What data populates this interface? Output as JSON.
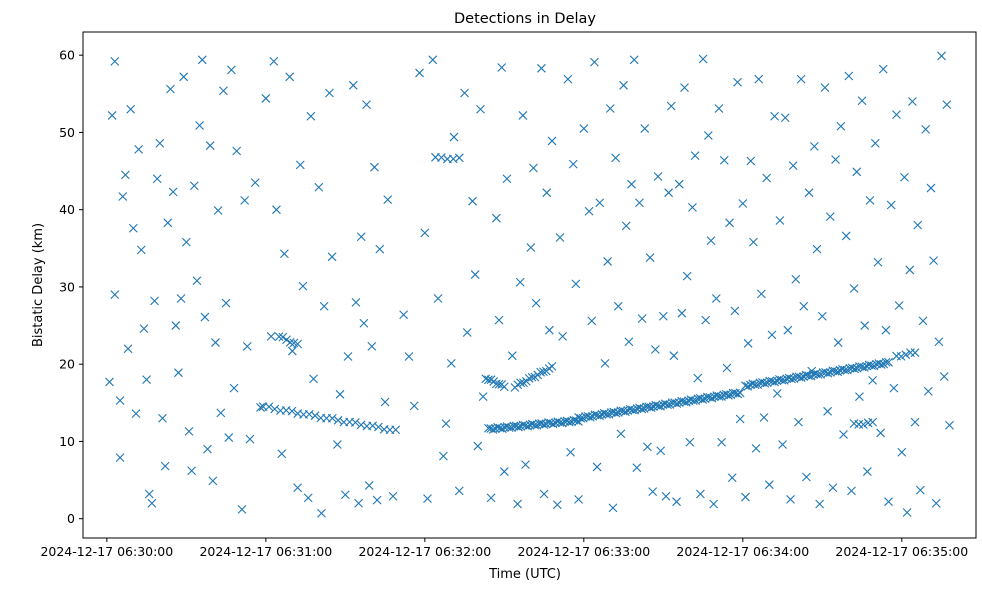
{
  "chart_data": {
    "type": "scatter",
    "title": "Detections in Delay",
    "xlabel": "Time (UTC)",
    "ylabel": "Bistatic Delay (km)",
    "marker": "x",
    "color": "#1f77b4",
    "grid": false,
    "xlim": [
      "2024-12-17 06:29:51",
      "2024-12-17 06:35:28"
    ],
    "ylim": [
      -2.5,
      63
    ],
    "x_ticks": [
      "2024-12-17 06:30:00",
      "2024-12-17 06:31:00",
      "2024-12-17 06:32:00",
      "2024-12-17 06:33:00",
      "2024-12-17 06:34:00",
      "2024-12-17 06:35:00"
    ],
    "y_ticks": [
      0,
      10,
      20,
      30,
      40,
      50,
      60
    ],
    "tracks": [
      {
        "start": "2024-12-17 06:30:59",
        "end": "2024-12-17 06:31:49",
        "y_start": 14.5,
        "y_end": 11.4
      },
      {
        "start": "2024-12-17 06:32:24",
        "end": "2024-12-17 06:32:58",
        "y_start": 11.6,
        "y_end": 12.7
      },
      {
        "start": "2024-12-17 06:32:58",
        "end": "2024-12-17 06:33:59",
        "y_start": 13.0,
        "y_end": 16.3
      },
      {
        "start": "2024-12-17 06:34:01",
        "end": "2024-12-17 06:34:55",
        "y_start": 17.2,
        "y_end": 20.2
      },
      {
        "start": "2024-12-17 06:32:23",
        "end": "2024-12-17 06:32:30",
        "y_start": 18.2,
        "y_end": 17.1
      },
      {
        "start": "2024-12-17 06:32:34",
        "end": "2024-12-17 06:32:48",
        "y_start": 17.1,
        "y_end": 19.6
      },
      {
        "start": "2024-12-17 06:31:05",
        "end": "2024-12-17 06:31:12",
        "y_start": 23.6,
        "y_end": 22.5
      },
      {
        "start": "2024-12-17 06:32:04",
        "end": "2024-12-17 06:32:13",
        "y_start": 46.7,
        "y_end": 46.6
      },
      {
        "start": "2024-12-17 06:34:42",
        "end": "2024-12-17 06:34:49",
        "y_start": 12.2,
        "y_end": 12.4
      },
      {
        "start": "2024-12-17 06:34:58",
        "end": "2024-12-17 06:35:05",
        "y_start": 21.0,
        "y_end": 21.5
      }
    ],
    "track_points": [
      24,
      40,
      70,
      60,
      8,
      14,
      6,
      5,
      5,
      5
    ],
    "scatter_points": [
      [
        "2024-12-17 06:30:01",
        17.7
      ],
      [
        "2024-12-17 06:30:02",
        52.2
      ],
      [
        "2024-12-17 06:30:03",
        59.2
      ],
      [
        "2024-12-17 06:30:03",
        29.0
      ],
      [
        "2024-12-17 06:30:05",
        15.3
      ],
      [
        "2024-12-17 06:30:05",
        7.9
      ],
      [
        "2024-12-17 06:30:06",
        41.7
      ],
      [
        "2024-12-17 06:30:07",
        44.5
      ],
      [
        "2024-12-17 06:30:08",
        22.0
      ],
      [
        "2024-12-17 06:30:09",
        53.0
      ],
      [
        "2024-12-17 06:30:10",
        37.6
      ],
      [
        "2024-12-17 06:30:11",
        13.6
      ],
      [
        "2024-12-17 06:30:12",
        47.8
      ],
      [
        "2024-12-17 06:30:13",
        34.8
      ],
      [
        "2024-12-17 06:30:14",
        24.6
      ],
      [
        "2024-12-17 06:30:15",
        18.0
      ],
      [
        "2024-12-17 06:30:16",
        3.2
      ],
      [
        "2024-12-17 06:30:17",
        2.0
      ],
      [
        "2024-12-17 06:30:18",
        28.2
      ],
      [
        "2024-12-17 06:30:19",
        44.0
      ],
      [
        "2024-12-17 06:30:20",
        48.6
      ],
      [
        "2024-12-17 06:30:21",
        13.0
      ],
      [
        "2024-12-17 06:30:22",
        6.8
      ],
      [
        "2024-12-17 06:30:23",
        38.3
      ],
      [
        "2024-12-17 06:30:24",
        55.6
      ],
      [
        "2024-12-17 06:30:25",
        42.3
      ],
      [
        "2024-12-17 06:30:26",
        25.0
      ],
      [
        "2024-12-17 06:30:27",
        18.9
      ],
      [
        "2024-12-17 06:30:28",
        28.5
      ],
      [
        "2024-12-17 06:30:29",
        57.2
      ],
      [
        "2024-12-17 06:30:30",
        35.8
      ],
      [
        "2024-12-17 06:30:31",
        11.3
      ],
      [
        "2024-12-17 06:30:32",
        6.2
      ],
      [
        "2024-12-17 06:30:33",
        43.1
      ],
      [
        "2024-12-17 06:30:34",
        30.8
      ],
      [
        "2024-12-17 06:30:35",
        50.9
      ],
      [
        "2024-12-17 06:30:36",
        59.4
      ],
      [
        "2024-12-17 06:30:37",
        26.1
      ],
      [
        "2024-12-17 06:30:38",
        9.0
      ],
      [
        "2024-12-17 06:30:39",
        48.3
      ],
      [
        "2024-12-17 06:30:40",
        4.9
      ],
      [
        "2024-12-17 06:30:41",
        22.8
      ],
      [
        "2024-12-17 06:30:42",
        39.9
      ],
      [
        "2024-12-17 06:30:43",
        13.7
      ],
      [
        "2024-12-17 06:30:44",
        55.4
      ],
      [
        "2024-12-17 06:30:45",
        27.9
      ],
      [
        "2024-12-17 06:30:46",
        10.5
      ],
      [
        "2024-12-17 06:30:47",
        58.1
      ],
      [
        "2024-12-17 06:30:48",
        16.9
      ],
      [
        "2024-12-17 06:30:49",
        47.6
      ],
      [
        "2024-12-17 06:30:51",
        1.2
      ],
      [
        "2024-12-17 06:30:52",
        41.2
      ],
      [
        "2024-12-17 06:30:53",
        22.3
      ],
      [
        "2024-12-17 06:30:54",
        10.3
      ],
      [
        "2024-12-17 06:30:56",
        43.5
      ],
      [
        "2024-12-17 06:30:58",
        14.4
      ],
      [
        "2024-12-17 06:31:00",
        54.4
      ],
      [
        "2024-12-17 06:31:02",
        23.6
      ],
      [
        "2024-12-17 06:31:03",
        59.2
      ],
      [
        "2024-12-17 06:31:04",
        40.0
      ],
      [
        "2024-12-17 06:31:06",
        8.4
      ],
      [
        "2024-12-17 06:31:07",
        34.3
      ],
      [
        "2024-12-17 06:31:09",
        57.2
      ],
      [
        "2024-12-17 06:31:10",
        21.7
      ],
      [
        "2024-12-17 06:31:12",
        4.0
      ],
      [
        "2024-12-17 06:31:13",
        45.8
      ],
      [
        "2024-12-17 06:31:14",
        30.1
      ],
      [
        "2024-12-17 06:31:16",
        2.7
      ],
      [
        "2024-12-17 06:31:17",
        52.1
      ],
      [
        "2024-12-17 06:31:18",
        18.1
      ],
      [
        "2024-12-17 06:31:20",
        42.9
      ],
      [
        "2024-12-17 06:31:21",
        0.7
      ],
      [
        "2024-12-17 06:31:22",
        27.5
      ],
      [
        "2024-12-17 06:31:24",
        55.1
      ],
      [
        "2024-12-17 06:31:25",
        33.9
      ],
      [
        "2024-12-17 06:31:27",
        9.6
      ],
      [
        "2024-12-17 06:31:28",
        16.1
      ],
      [
        "2024-12-17 06:31:30",
        3.1
      ],
      [
        "2024-12-17 06:31:31",
        21.0
      ],
      [
        "2024-12-17 06:31:33",
        56.1
      ],
      [
        "2024-12-17 06:31:34",
        28.0
      ],
      [
        "2024-12-17 06:31:35",
        2.0
      ],
      [
        "2024-12-17 06:31:36",
        36.5
      ],
      [
        "2024-12-17 06:31:37",
        25.3
      ],
      [
        "2024-12-17 06:31:38",
        53.6
      ],
      [
        "2024-12-17 06:31:39",
        4.3
      ],
      [
        "2024-12-17 06:31:40",
        22.3
      ],
      [
        "2024-12-17 06:31:41",
        45.5
      ],
      [
        "2024-12-17 06:31:42",
        2.4
      ],
      [
        "2024-12-17 06:31:43",
        34.9
      ],
      [
        "2024-12-17 06:31:45",
        15.1
      ],
      [
        "2024-12-17 06:31:46",
        41.3
      ],
      [
        "2024-12-17 06:31:48",
        2.9
      ],
      [
        "2024-12-17 06:31:52",
        26.4
      ],
      [
        "2024-12-17 06:31:54",
        21.0
      ],
      [
        "2024-12-17 06:31:56",
        14.6
      ],
      [
        "2024-12-17 06:31:58",
        57.7
      ],
      [
        "2024-12-17 06:32:00",
        37.0
      ],
      [
        "2024-12-17 06:32:01",
        2.6
      ],
      [
        "2024-12-17 06:32:03",
        59.4
      ],
      [
        "2024-12-17 06:32:05",
        28.5
      ],
      [
        "2024-12-17 06:32:07",
        8.1
      ],
      [
        "2024-12-17 06:32:08",
        12.3
      ],
      [
        "2024-12-17 06:32:10",
        20.1
      ],
      [
        "2024-12-17 06:32:11",
        49.4
      ],
      [
        "2024-12-17 06:32:13",
        3.6
      ],
      [
        "2024-12-17 06:32:15",
        55.1
      ],
      [
        "2024-12-17 06:32:16",
        24.1
      ],
      [
        "2024-12-17 06:32:18",
        41.1
      ],
      [
        "2024-12-17 06:32:19",
        31.6
      ],
      [
        "2024-12-17 06:32:20",
        9.4
      ],
      [
        "2024-12-17 06:32:21",
        53.0
      ],
      [
        "2024-12-17 06:32:22",
        15.8
      ],
      [
        "2024-12-17 06:32:25",
        2.7
      ],
      [
        "2024-12-17 06:32:27",
        38.9
      ],
      [
        "2024-12-17 06:32:28",
        25.7
      ],
      [
        "2024-12-17 06:32:29",
        58.4
      ],
      [
        "2024-12-17 06:32:30",
        6.1
      ],
      [
        "2024-12-17 06:32:31",
        44.0
      ],
      [
        "2024-12-17 06:32:33",
        21.1
      ],
      [
        "2024-12-17 06:32:35",
        1.9
      ],
      [
        "2024-12-17 06:32:36",
        30.6
      ],
      [
        "2024-12-17 06:32:37",
        52.2
      ],
      [
        "2024-12-17 06:32:38",
        7.0
      ],
      [
        "2024-12-17 06:32:40",
        35.1
      ],
      [
        "2024-12-17 06:32:41",
        45.4
      ],
      [
        "2024-12-17 06:32:42",
        27.9
      ],
      [
        "2024-12-17 06:32:44",
        58.3
      ],
      [
        "2024-12-17 06:32:45",
        3.2
      ],
      [
        "2024-12-17 06:32:46",
        42.2
      ],
      [
        "2024-12-17 06:32:47",
        24.4
      ],
      [
        "2024-12-17 06:32:48",
        48.9
      ],
      [
        "2024-12-17 06:32:50",
        1.8
      ],
      [
        "2024-12-17 06:32:51",
        36.4
      ],
      [
        "2024-12-17 06:32:52",
        23.6
      ],
      [
        "2024-12-17 06:32:54",
        56.9
      ],
      [
        "2024-12-17 06:32:55",
        8.6
      ],
      [
        "2024-12-17 06:32:56",
        45.9
      ],
      [
        "2024-12-17 06:32:57",
        30.4
      ],
      [
        "2024-12-17 06:32:58",
        2.5
      ],
      [
        "2024-12-17 06:33:00",
        50.5
      ],
      [
        "2024-12-17 06:33:02",
        39.8
      ],
      [
        "2024-12-17 06:33:03",
        25.6
      ],
      [
        "2024-12-17 06:33:04",
        59.1
      ],
      [
        "2024-12-17 06:33:05",
        6.7
      ],
      [
        "2024-12-17 06:33:06",
        40.9
      ],
      [
        "2024-12-17 06:33:08",
        20.1
      ],
      [
        "2024-12-17 06:33:09",
        33.3
      ],
      [
        "2024-12-17 06:33:10",
        53.1
      ],
      [
        "2024-12-17 06:33:11",
        1.4
      ],
      [
        "2024-12-17 06:33:12",
        46.7
      ],
      [
        "2024-12-17 06:33:13",
        27.5
      ],
      [
        "2024-12-17 06:33:14",
        11.0
      ],
      [
        "2024-12-17 06:33:15",
        56.1
      ],
      [
        "2024-12-17 06:33:16",
        37.9
      ],
      [
        "2024-12-17 06:33:17",
        22.9
      ],
      [
        "2024-12-17 06:33:18",
        43.3
      ],
      [
        "2024-12-17 06:33:19",
        59.4
      ],
      [
        "2024-12-17 06:33:20",
        6.6
      ],
      [
        "2024-12-17 06:33:21",
        40.9
      ],
      [
        "2024-12-17 06:33:22",
        25.9
      ],
      [
        "2024-12-17 06:33:23",
        50.5
      ],
      [
        "2024-12-17 06:33:24",
        9.3
      ],
      [
        "2024-12-17 06:33:25",
        33.8
      ],
      [
        "2024-12-17 06:33:26",
        3.5
      ],
      [
        "2024-12-17 06:33:27",
        21.9
      ],
      [
        "2024-12-17 06:33:28",
        44.3
      ],
      [
        "2024-12-17 06:33:29",
        8.8
      ],
      [
        "2024-12-17 06:33:30",
        26.2
      ],
      [
        "2024-12-17 06:33:31",
        2.9
      ],
      [
        "2024-12-17 06:33:32",
        42.2
      ],
      [
        "2024-12-17 06:33:33",
        53.4
      ],
      [
        "2024-12-17 06:33:34",
        21.1
      ],
      [
        "2024-12-17 06:33:35",
        2.2
      ],
      [
        "2024-12-17 06:33:36",
        43.3
      ],
      [
        "2024-12-17 06:33:37",
        26.6
      ],
      [
        "2024-12-17 06:33:38",
        55.8
      ],
      [
        "2024-12-17 06:33:39",
        31.4
      ],
      [
        "2024-12-17 06:33:40",
        9.9
      ],
      [
        "2024-12-17 06:33:41",
        40.3
      ],
      [
        "2024-12-17 06:33:42",
        47.0
      ],
      [
        "2024-12-17 06:33:43",
        18.2
      ],
      [
        "2024-12-17 06:33:44",
        3.2
      ],
      [
        "2024-12-17 06:33:45",
        59.5
      ],
      [
        "2024-12-17 06:33:46",
        25.7
      ],
      [
        "2024-12-17 06:33:47",
        49.6
      ],
      [
        "2024-12-17 06:33:48",
        36.0
      ],
      [
        "2024-12-17 06:33:49",
        1.9
      ],
      [
        "2024-12-17 06:33:50",
        28.5
      ],
      [
        "2024-12-17 06:33:51",
        53.1
      ],
      [
        "2024-12-17 06:33:52",
        9.9
      ],
      [
        "2024-12-17 06:33:53",
        46.4
      ],
      [
        "2024-12-17 06:33:54",
        19.5
      ],
      [
        "2024-12-17 06:33:55",
        38.3
      ],
      [
        "2024-12-17 06:33:56",
        5.3
      ],
      [
        "2024-12-17 06:33:57",
        26.9
      ],
      [
        "2024-12-17 06:33:58",
        56.5
      ],
      [
        "2024-12-17 06:33:59",
        12.9
      ],
      [
        "2024-12-17 06:34:00",
        40.8
      ],
      [
        "2024-12-17 06:34:01",
        2.8
      ],
      [
        "2024-12-17 06:34:02",
        22.7
      ],
      [
        "2024-12-17 06:34:03",
        46.3
      ],
      [
        "2024-12-17 06:34:04",
        35.8
      ],
      [
        "2024-12-17 06:34:05",
        9.1
      ],
      [
        "2024-12-17 06:34:06",
        56.9
      ],
      [
        "2024-12-17 06:34:07",
        29.1
      ],
      [
        "2024-12-17 06:34:08",
        13.1
      ],
      [
        "2024-12-17 06:34:09",
        44.1
      ],
      [
        "2024-12-17 06:34:10",
        4.4
      ],
      [
        "2024-12-17 06:34:11",
        23.8
      ],
      [
        "2024-12-17 06:34:12",
        52.1
      ],
      [
        "2024-12-17 06:34:13",
        16.2
      ],
      [
        "2024-12-17 06:34:14",
        38.6
      ],
      [
        "2024-12-17 06:34:15",
        9.6
      ],
      [
        "2024-12-17 06:34:16",
        51.9
      ],
      [
        "2024-12-17 06:34:17",
        24.4
      ],
      [
        "2024-12-17 06:34:18",
        2.5
      ],
      [
        "2024-12-17 06:34:19",
        45.7
      ],
      [
        "2024-12-17 06:34:20",
        31.0
      ],
      [
        "2024-12-17 06:34:21",
        12.5
      ],
      [
        "2024-12-17 06:34:22",
        56.9
      ],
      [
        "2024-12-17 06:34:23",
        27.5
      ],
      [
        "2024-12-17 06:34:24",
        5.4
      ],
      [
        "2024-12-17 06:34:25",
        42.2
      ],
      [
        "2024-12-17 06:34:26",
        19.1
      ],
      [
        "2024-12-17 06:34:27",
        48.2
      ],
      [
        "2024-12-17 06:34:28",
        34.9
      ],
      [
        "2024-12-17 06:34:29",
        1.9
      ],
      [
        "2024-12-17 06:34:30",
        26.2
      ],
      [
        "2024-12-17 06:34:31",
        55.8
      ],
      [
        "2024-12-17 06:34:32",
        13.9
      ],
      [
        "2024-12-17 06:34:33",
        39.1
      ],
      [
        "2024-12-17 06:34:34",
        4.0
      ],
      [
        "2024-12-17 06:34:35",
        46.5
      ],
      [
        "2024-12-17 06:34:36",
        22.8
      ],
      [
        "2024-12-17 06:34:37",
        50.8
      ],
      [
        "2024-12-17 06:34:38",
        10.9
      ],
      [
        "2024-12-17 06:34:39",
        36.6
      ],
      [
        "2024-12-17 06:34:40",
        57.3
      ],
      [
        "2024-12-17 06:34:41",
        3.6
      ],
      [
        "2024-12-17 06:34:42",
        29.8
      ],
      [
        "2024-12-17 06:34:43",
        44.9
      ],
      [
        "2024-12-17 06:34:44",
        15.8
      ],
      [
        "2024-12-17 06:34:45",
        54.1
      ],
      [
        "2024-12-17 06:34:46",
        25.0
      ],
      [
        "2024-12-17 06:34:47",
        6.1
      ],
      [
        "2024-12-17 06:34:48",
        41.2
      ],
      [
        "2024-12-17 06:34:49",
        17.9
      ],
      [
        "2024-12-17 06:34:50",
        48.6
      ],
      [
        "2024-12-17 06:34:51",
        33.2
      ],
      [
        "2024-12-17 06:34:52",
        11.1
      ],
      [
        "2024-12-17 06:34:53",
        58.2
      ],
      [
        "2024-12-17 06:34:54",
        24.4
      ],
      [
        "2024-12-17 06:34:55",
        2.2
      ],
      [
        "2024-12-17 06:34:56",
        40.6
      ],
      [
        "2024-12-17 06:34:57",
        16.9
      ],
      [
        "2024-12-17 06:34:58",
        52.3
      ],
      [
        "2024-12-17 06:34:59",
        27.6
      ],
      [
        "2024-12-17 06:35:00",
        8.6
      ],
      [
        "2024-12-17 06:35:01",
        44.2
      ],
      [
        "2024-12-17 06:35:02",
        0.8
      ],
      [
        "2024-12-17 06:35:03",
        32.2
      ],
      [
        "2024-12-17 06:35:04",
        54.0
      ],
      [
        "2024-12-17 06:35:05",
        12.5
      ],
      [
        "2024-12-17 06:35:06",
        38.0
      ],
      [
        "2024-12-17 06:35:07",
        3.7
      ],
      [
        "2024-12-17 06:35:08",
        25.6
      ],
      [
        "2024-12-17 06:35:09",
        50.4
      ],
      [
        "2024-12-17 06:35:10",
        16.5
      ],
      [
        "2024-12-17 06:35:11",
        42.8
      ],
      [
        "2024-12-17 06:35:12",
        33.4
      ],
      [
        "2024-12-17 06:35:13",
        2.0
      ],
      [
        "2024-12-17 06:35:14",
        22.9
      ],
      [
        "2024-12-17 06:35:15",
        59.9
      ],
      [
        "2024-12-17 06:35:16",
        18.4
      ],
      [
        "2024-12-17 06:35:17",
        53.6
      ],
      [
        "2024-12-17 06:35:18",
        12.1
      ]
    ]
  }
}
